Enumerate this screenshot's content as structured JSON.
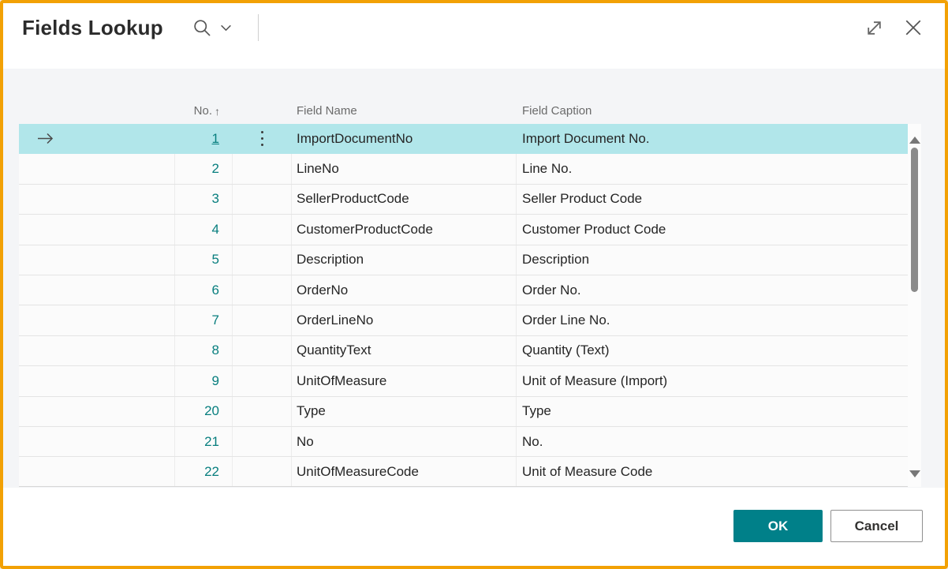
{
  "window": {
    "title": "Fields Lookup"
  },
  "titlebar": {
    "icons": {
      "search": "magnifier-icon",
      "search_dropdown": "chevron-down-icon",
      "expand": "diagonal-resize-icon",
      "close": "x-icon"
    }
  },
  "table": {
    "columns": [
      {
        "key": "no",
        "label": "No.",
        "sort_indicator": "↑"
      },
      {
        "key": "field_name",
        "label": "Field Name"
      },
      {
        "key": "field_caption",
        "label": "Field Caption"
      }
    ],
    "rows": [
      {
        "no": "1",
        "field_name": "ImportDocumentNo",
        "field_caption": "Import Document No.",
        "selected": true
      },
      {
        "no": "2",
        "field_name": "LineNo",
        "field_caption": "Line No.",
        "selected": false
      },
      {
        "no": "3",
        "field_name": "SellerProductCode",
        "field_caption": "Seller Product Code",
        "selected": false
      },
      {
        "no": "4",
        "field_name": "CustomerProductCode",
        "field_caption": "Customer Product Code",
        "selected": false
      },
      {
        "no": "5",
        "field_name": "Description",
        "field_caption": "Description",
        "selected": false
      },
      {
        "no": "6",
        "field_name": "OrderNo",
        "field_caption": "Order No.",
        "selected": false
      },
      {
        "no": "7",
        "field_name": "OrderLineNo",
        "field_caption": "Order Line No.",
        "selected": false
      },
      {
        "no": "8",
        "field_name": "QuantityText",
        "field_caption": "Quantity (Text)",
        "selected": false
      },
      {
        "no": "9",
        "field_name": "UnitOfMeasure",
        "field_caption": "Unit of Measure (Import)",
        "selected": false
      },
      {
        "no": "20",
        "field_name": "Type",
        "field_caption": "Type",
        "selected": false
      },
      {
        "no": "21",
        "field_name": "No",
        "field_caption": "No.",
        "selected": false
      },
      {
        "no": "22",
        "field_name": "UnitOfMeasureCode",
        "field_caption": "Unit of Measure Code",
        "selected": false
      }
    ],
    "selected_row_icons": {
      "indicator": "arrow-right-icon",
      "menu": "vertical-ellipsis-icon"
    }
  },
  "footer": {
    "ok_label": "OK",
    "cancel_label": "Cancel"
  },
  "colors": {
    "accent_border": "#F2A105",
    "primary_button": "#008089",
    "selected_row": "#B1E6EA",
    "number_link": "#077E7E"
  }
}
